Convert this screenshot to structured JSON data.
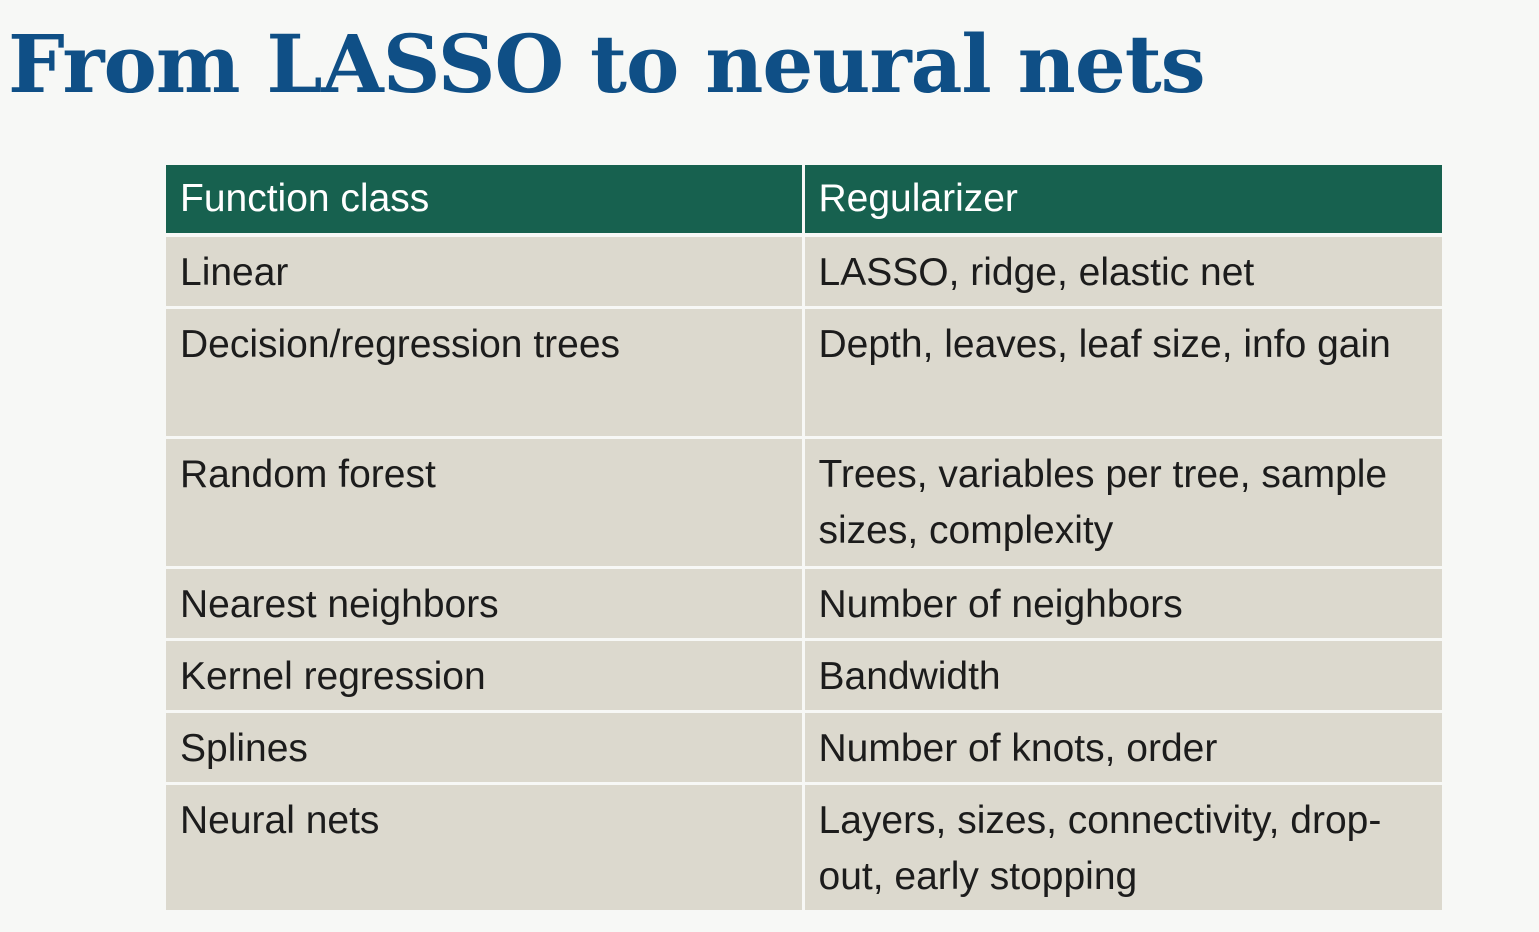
{
  "slide": {
    "title": "From LASSO to neural nets"
  },
  "table": {
    "headers": [
      "Function class",
      "Regularizer"
    ],
    "rows": [
      {
        "function_class": "Linear",
        "regularizer": "LASSO, ridge, elastic net"
      },
      {
        "function_class": "Decision/regression trees",
        "regularizer": "Depth, leaves, leaf size, info gain"
      },
      {
        "function_class": "Random forest",
        "regularizer": "Trees, variables per tree, sample sizes, complexity"
      },
      {
        "function_class": "Nearest neighbors",
        "regularizer": "Number of neighbors"
      },
      {
        "function_class": "Kernel regression",
        "regularizer": "Bandwidth"
      },
      {
        "function_class": "Splines",
        "regularizer": "Number of knots, order"
      },
      {
        "function_class": "Neural nets",
        "regularizer": "Layers, sizes, connectivity, drop-out, early stopping"
      }
    ]
  },
  "colors": {
    "title": "#0f4f86",
    "header_background": "#17614f",
    "cell_background": "#dcd9ce",
    "page_background": "#f7f8f6"
  }
}
